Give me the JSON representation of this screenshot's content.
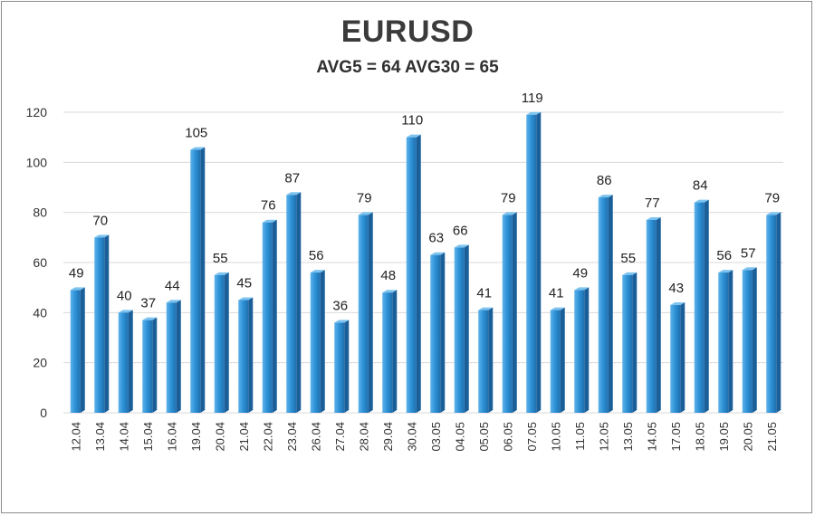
{
  "chart_data": {
    "type": "bar",
    "title": "EURUSD",
    "subtitle": "AVG5 = 64 AVG30 = 65",
    "categories": [
      "12.04",
      "13.04",
      "14.04",
      "15.04",
      "16.04",
      "19.04",
      "20.04",
      "21.04",
      "22.04",
      "23.04",
      "26.04",
      "27.04",
      "28.04",
      "29.04",
      "30.04",
      "03.05",
      "04.05",
      "05.05",
      "06.05",
      "07.05",
      "10.05",
      "11.05",
      "12.05",
      "13.05",
      "14.05",
      "17.05",
      "18.05",
      "19.05",
      "20.05",
      "21.05"
    ],
    "values": [
      49,
      70,
      40,
      37,
      44,
      105,
      55,
      45,
      76,
      87,
      56,
      36,
      79,
      48,
      110,
      63,
      66,
      41,
      79,
      119,
      41,
      49,
      86,
      55,
      77,
      43,
      84,
      56,
      57,
      79
    ],
    "ylim": [
      0,
      120
    ],
    "yticks": [
      0,
      20,
      40,
      60,
      80,
      100,
      120
    ],
    "grid": true,
    "legend": "none",
    "data_labels": true,
    "colors": {
      "bar": "#2f93d8",
      "bar_dark": "#1a5f9a",
      "grid": "#d9d9d9"
    }
  }
}
